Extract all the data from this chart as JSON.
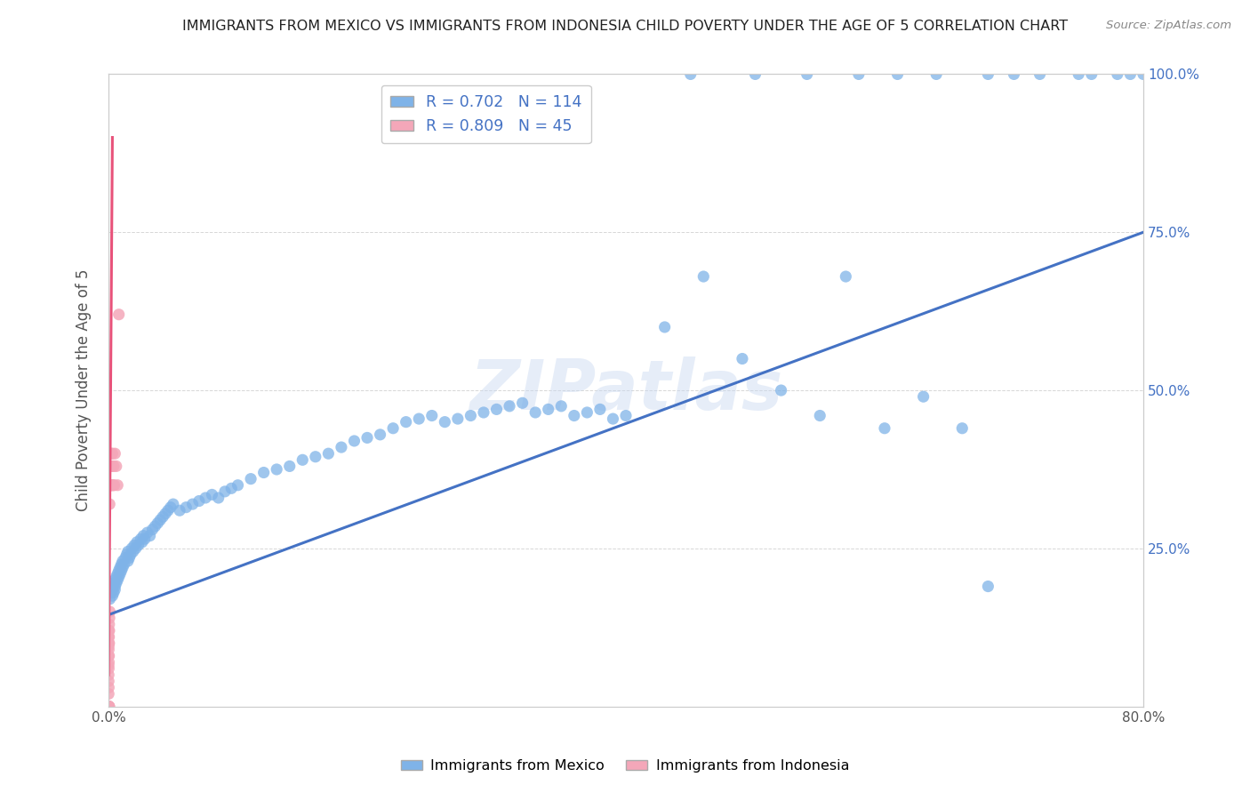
{
  "title": "IMMIGRANTS FROM MEXICO VS IMMIGRANTS FROM INDONESIA CHILD POVERTY UNDER THE AGE OF 5 CORRELATION CHART",
  "source": "Source: ZipAtlas.com",
  "ylabel": "Child Poverty Under the Age of 5",
  "xlim": [
    0.0,
    0.8
  ],
  "ylim": [
    0.0,
    1.0
  ],
  "mexico_R": 0.702,
  "mexico_N": 114,
  "indonesia_R": 0.809,
  "indonesia_N": 45,
  "mexico_color": "#7fb3e8",
  "indonesia_color": "#f4a7b9",
  "mexico_line_color": "#4472c4",
  "indonesia_line_color": "#e8527a",
  "legend_label_mexico": "Immigrants from Mexico",
  "legend_label_indonesia": "Immigrants from Indonesia",
  "watermark": "ZIPatlas",
  "background_color": "#ffffff",
  "grid_color": "#d3d3d3",
  "mexico_scatter_x": [
    0.001,
    0.002,
    0.002,
    0.003,
    0.003,
    0.004,
    0.004,
    0.005,
    0.005,
    0.005,
    0.006,
    0.006,
    0.007,
    0.007,
    0.008,
    0.008,
    0.009,
    0.009,
    0.01,
    0.01,
    0.011,
    0.011,
    0.012,
    0.013,
    0.014,
    0.015,
    0.015,
    0.016,
    0.017,
    0.018,
    0.019,
    0.02,
    0.021,
    0.022,
    0.023,
    0.025,
    0.026,
    0.027,
    0.028,
    0.03,
    0.032,
    0.034,
    0.036,
    0.038,
    0.04,
    0.042,
    0.044,
    0.046,
    0.048,
    0.05,
    0.055,
    0.06,
    0.065,
    0.07,
    0.075,
    0.08,
    0.085,
    0.09,
    0.095,
    0.1,
    0.11,
    0.12,
    0.13,
    0.14,
    0.15,
    0.16,
    0.17,
    0.18,
    0.19,
    0.2,
    0.21,
    0.22,
    0.23,
    0.24,
    0.25,
    0.26,
    0.27,
    0.28,
    0.29,
    0.3,
    0.31,
    0.32,
    0.33,
    0.34,
    0.35,
    0.36,
    0.37,
    0.38,
    0.39,
    0.4,
    0.43,
    0.46,
    0.49,
    0.52,
    0.55,
    0.57,
    0.6,
    0.63,
    0.66,
    0.68,
    0.45,
    0.5,
    0.54,
    0.58,
    0.61,
    0.64,
    0.68,
    0.7,
    0.72,
    0.75,
    0.76,
    0.78,
    0.79,
    0.8
  ],
  "mexico_scatter_y": [
    0.17,
    0.18,
    0.19,
    0.175,
    0.185,
    0.18,
    0.195,
    0.185,
    0.19,
    0.2,
    0.195,
    0.205,
    0.2,
    0.21,
    0.205,
    0.215,
    0.21,
    0.22,
    0.215,
    0.225,
    0.22,
    0.23,
    0.225,
    0.235,
    0.24,
    0.23,
    0.245,
    0.235,
    0.24,
    0.25,
    0.245,
    0.255,
    0.25,
    0.26,
    0.255,
    0.265,
    0.26,
    0.27,
    0.265,
    0.275,
    0.27,
    0.28,
    0.285,
    0.29,
    0.295,
    0.3,
    0.305,
    0.31,
    0.315,
    0.32,
    0.31,
    0.315,
    0.32,
    0.325,
    0.33,
    0.335,
    0.33,
    0.34,
    0.345,
    0.35,
    0.36,
    0.37,
    0.375,
    0.38,
    0.39,
    0.395,
    0.4,
    0.41,
    0.42,
    0.425,
    0.43,
    0.44,
    0.45,
    0.455,
    0.46,
    0.45,
    0.455,
    0.46,
    0.465,
    0.47,
    0.475,
    0.48,
    0.465,
    0.47,
    0.475,
    0.46,
    0.465,
    0.47,
    0.455,
    0.46,
    0.6,
    0.68,
    0.55,
    0.5,
    0.46,
    0.68,
    0.44,
    0.49,
    0.44,
    0.19,
    1.0,
    1.0,
    1.0,
    1.0,
    1.0,
    1.0,
    1.0,
    1.0,
    1.0,
    1.0,
    1.0,
    1.0,
    1.0,
    1.0
  ],
  "indonesia_scatter_x": [
    0.0001,
    0.0001,
    0.0001,
    0.0001,
    0.0001,
    0.0001,
    0.0001,
    0.0001,
    0.0001,
    0.0001,
    0.0002,
    0.0002,
    0.0002,
    0.0002,
    0.0002,
    0.0003,
    0.0003,
    0.0003,
    0.0004,
    0.0004,
    0.0005,
    0.0005,
    0.0005,
    0.0006,
    0.0006,
    0.0007,
    0.0008,
    0.0009,
    0.001,
    0.001,
    0.0012,
    0.0013,
    0.0015,
    0.0018,
    0.002,
    0.0025,
    0.0028,
    0.003,
    0.0035,
    0.004,
    0.0045,
    0.005,
    0.006,
    0.007,
    0.008
  ],
  "indonesia_scatter_y": [
    0.02,
    0.04,
    0.05,
    0.065,
    0.08,
    0.095,
    0.11,
    0.0,
    0.0,
    0.0,
    0.03,
    0.06,
    0.09,
    0.12,
    0.0,
    0.07,
    0.1,
    0.0,
    0.08,
    0.11,
    0.1,
    0.13,
    0.0,
    0.12,
    0.0,
    0.14,
    0.32,
    0.35,
    0.15,
    0.38,
    0.38,
    0.35,
    0.35,
    0.35,
    0.4,
    0.38,
    0.35,
    0.4,
    0.35,
    0.38,
    0.35,
    0.4,
    0.38,
    0.35,
    0.62
  ],
  "mexico_line_x": [
    0.0,
    0.8
  ],
  "mexico_line_y": [
    0.145,
    0.75
  ],
  "indonesia_line_x": [
    0.0001,
    0.003
  ],
  "indonesia_line_y": [
    0.05,
    0.9
  ]
}
